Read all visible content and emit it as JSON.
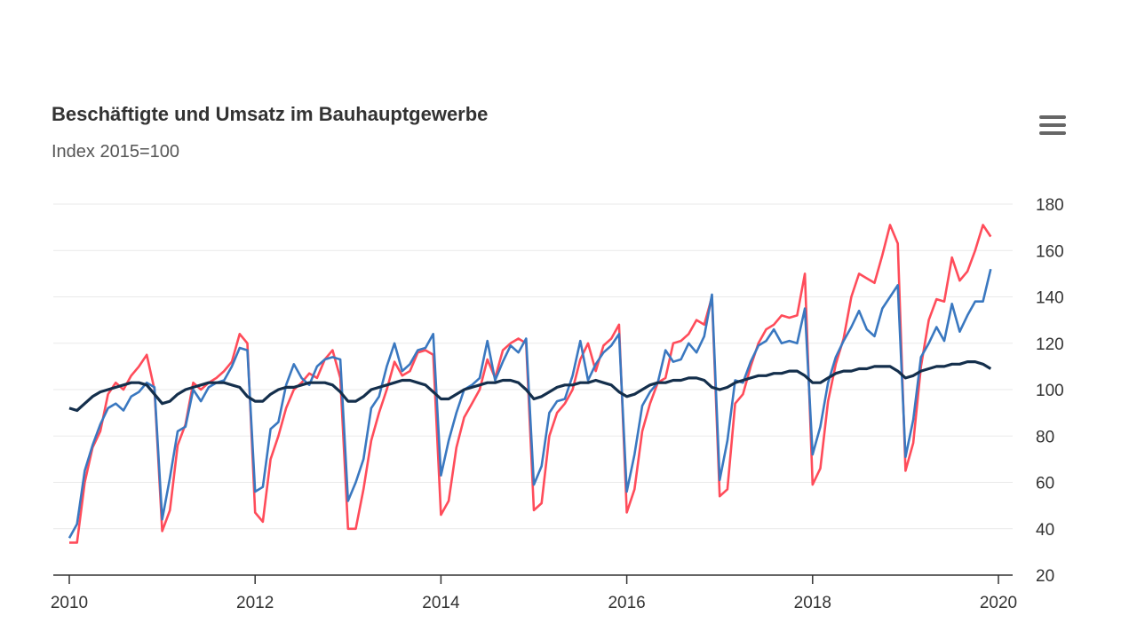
{
  "chart_data": {
    "type": "line",
    "title": "Beschäftigte und Umsatz im Bauhauptgewerbe",
    "subtitle": "Index 2015=100",
    "xlabel": "",
    "ylabel": "",
    "x_start": "2010-01",
    "x_ticks": [
      "2010",
      "2012",
      "2014",
      "2016",
      "2018",
      "2020"
    ],
    "y_ticks": [
      "20",
      "40",
      "60",
      "80",
      "100",
      "120",
      "140",
      "160",
      "180"
    ],
    "ylim": [
      20,
      185
    ],
    "y_axis_position": "right",
    "grid": true,
    "legend": "none",
    "series": [
      {
        "color": "#ff4c5a",
        "values": [
          34,
          34,
          60,
          75,
          82,
          98,
          103,
          100,
          106,
          110,
          115,
          100,
          39,
          48,
          76,
          85,
          103,
          100,
          103,
          105,
          108,
          112,
          124,
          120,
          47,
          43,
          70,
          80,
          92,
          100,
          103,
          107,
          105,
          113,
          117,
          105,
          40,
          40,
          57,
          78,
          90,
          100,
          112,
          106,
          108,
          116,
          117,
          115,
          46,
          52,
          75,
          88,
          94,
          100,
          113,
          105,
          117,
          120,
          122,
          120,
          48,
          51,
          80,
          90,
          94,
          100,
          113,
          120,
          108,
          119,
          122,
          128,
          47,
          57,
          82,
          94,
          103,
          105,
          120,
          121,
          124,
          130,
          128,
          140,
          54,
          57,
          94,
          98,
          110,
          120,
          126,
          128,
          132,
          131,
          132,
          150,
          59,
          66,
          95,
          111,
          122,
          140,
          150,
          148,
          146,
          158,
          171,
          163,
          65,
          77,
          110,
          130,
          139,
          138,
          157,
          147,
          151,
          160,
          171,
          166
        ]
      },
      {
        "color": "#3a78c0",
        "values": [
          36,
          42,
          65,
          76,
          85,
          92,
          94,
          91,
          97,
          99,
          103,
          101,
          44,
          62,
          82,
          84,
          100,
          95,
          101,
          103,
          104,
          110,
          118,
          117,
          56,
          58,
          83,
          86,
          102,
          111,
          105,
          102,
          110,
          113,
          114,
          113,
          52,
          60,
          70,
          92,
          97,
          110,
          120,
          108,
          111,
          117,
          118,
          124,
          63,
          78,
          90,
          100,
          102,
          105,
          121,
          104,
          112,
          119,
          116,
          122,
          59,
          67,
          90,
          95,
          96,
          106,
          121,
          104,
          111,
          116,
          119,
          124,
          56,
          72,
          93,
          99,
          103,
          117,
          112,
          113,
          120,
          116,
          123,
          141,
          61,
          78,
          104,
          103,
          112,
          119,
          121,
          126,
          120,
          121,
          120,
          135,
          72,
          84,
          103,
          114,
          121,
          127,
          134,
          126,
          123,
          135,
          140,
          145,
          71,
          87,
          114,
          120,
          127,
          121,
          137,
          125,
          132,
          138,
          138,
          152
        ]
      },
      {
        "color": "#142f4c",
        "values": [
          92,
          91,
          94,
          97,
          99,
          100,
          101,
          102,
          103,
          103,
          102,
          98,
          94,
          95,
          98,
          100,
          101,
          102,
          103,
          103,
          103,
          102,
          101,
          97,
          95,
          95,
          98,
          100,
          101,
          101,
          102,
          103,
          103,
          103,
          102,
          99,
          95,
          95,
          97,
          100,
          101,
          102,
          103,
          104,
          104,
          103,
          102,
          99,
          96,
          96,
          98,
          100,
          101,
          102,
          103,
          103,
          104,
          104,
          103,
          100,
          96,
          97,
          99,
          101,
          102,
          102,
          103,
          103,
          104,
          103,
          102,
          99,
          97,
          98,
          100,
          102,
          103,
          103,
          104,
          104,
          105,
          105,
          104,
          101,
          100,
          101,
          103,
          104,
          105,
          106,
          106,
          107,
          107,
          108,
          108,
          106,
          103,
          103,
          105,
          107,
          108,
          108,
          109,
          109,
          110,
          110,
          110,
          108,
          105,
          106,
          108,
          109,
          110,
          110,
          111,
          111,
          112,
          112,
          111,
          109
        ]
      }
    ]
  }
}
